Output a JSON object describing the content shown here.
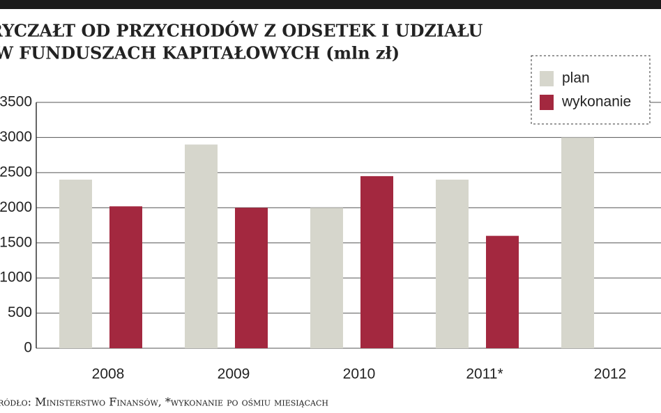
{
  "chart_data": {
    "type": "bar",
    "title": "RYCZAŁT OD PRZYCHODÓW Z ODSETEK I UDZIAŁU",
    "subtitle": "W FUNDUSZACH KAPITAŁOWYCH (mln zł)",
    "source": "Źródło: Ministerstwo Finansów, *wykonanie po ośmiu miesiącach",
    "categories": [
      "2008",
      "2009",
      "2010",
      "2011*",
      "2012"
    ],
    "series": [
      {
        "name": "plan",
        "color": "#d6d6cc",
        "values": [
          2400,
          2900,
          2000,
          2400,
          3000
        ]
      },
      {
        "name": "wykonanie",
        "color": "#a3283f",
        "values": [
          2020,
          2000,
          2450,
          1600,
          null
        ]
      }
    ],
    "ylim": [
      0,
      3500
    ],
    "yticks": [
      0,
      500,
      1000,
      1500,
      2000,
      2500,
      3000,
      3500
    ],
    "grid": true,
    "legend": "top-right"
  }
}
